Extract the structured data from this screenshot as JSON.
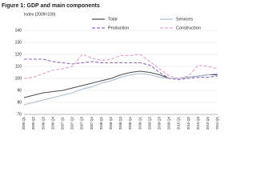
{
  "chart_data": {
    "type": "line",
    "title": "Figure 1: GDP and main components",
    "ylabel": "Index (2009=100)",
    "categories": [
      "2006 Q1",
      "2006 Q2",
      "2006 Q3",
      "2006 Q4",
      "2007 Q1",
      "2007 Q2",
      "2007 Q3",
      "2007 Q4",
      "2008 Q1",
      "2008 Q2",
      "2008 Q3",
      "2008 Q4",
      "2009 Q1",
      "2009 Q2",
      "2009 Q3",
      "2009 Q4",
      "2010 Q1",
      "2010 Q2",
      "2010 Q3",
      "2010 Q4",
      "2011 Q1"
    ],
    "series": [
      {
        "name": "Total",
        "color": "#4d4d4d",
        "dashed": false,
        "values": [
          84,
          86,
          88,
          89,
          90,
          92,
          94,
          96,
          98,
          100,
          103,
          105,
          106,
          105,
          103,
          100,
          100,
          101,
          102,
          103,
          103
        ]
      },
      {
        "name": "Services",
        "color": "#a8bcd0",
        "dashed": false,
        "values": [
          78,
          80,
          82,
          84,
          86,
          88,
          91,
          93,
          96,
          98,
          101,
          103,
          104,
          103,
          101,
          100,
          100,
          101,
          102,
          103,
          104
        ]
      },
      {
        "name": "Production",
        "color": "#8a6cb0",
        "dashed": true,
        "values": [
          116,
          116,
          116,
          114,
          113,
          112,
          113,
          114,
          113,
          113,
          113,
          113,
          113,
          111,
          105,
          100,
          99,
          100,
          101,
          101,
          102
        ]
      },
      {
        "name": "Construction",
        "color": "#dba4cc",
        "dashed": true,
        "values": [
          100,
          101,
          104,
          107,
          108,
          110,
          120,
          117,
          115,
          116,
          119,
          119,
          120,
          114,
          108,
          102,
          100,
          102,
          111,
          110,
          108
        ]
      }
    ],
    "ylim": [
      70,
      140
    ],
    "yticks": [
      70,
      80,
      90,
      100,
      110,
      120,
      130,
      140
    ],
    "grid": true
  }
}
